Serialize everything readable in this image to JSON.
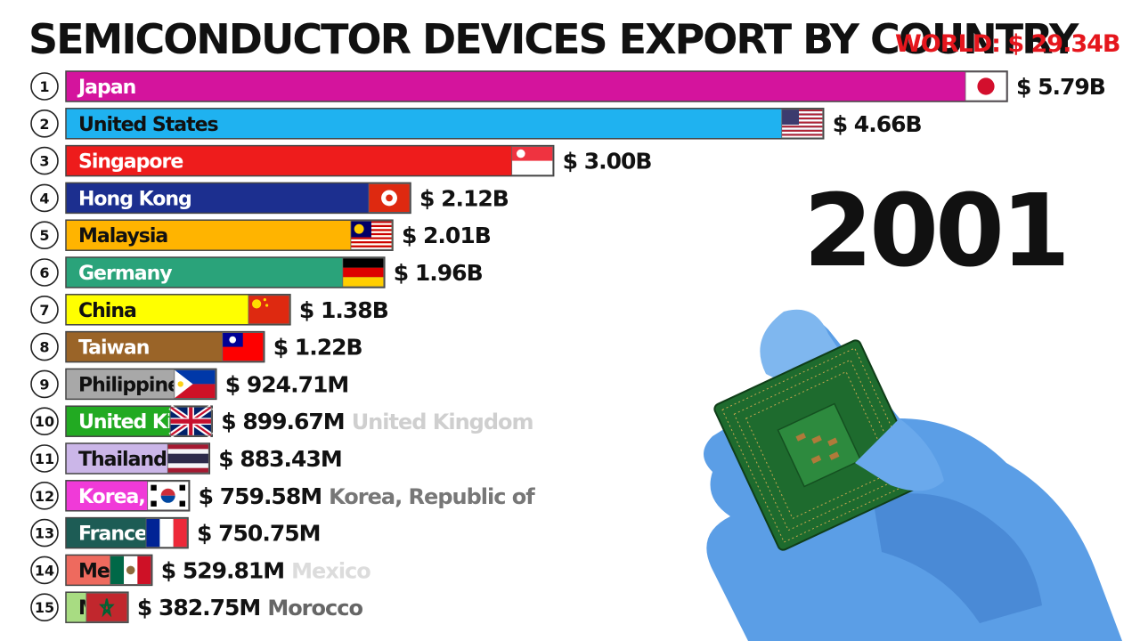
{
  "title": "SEMICONDUCTOR DEVICES EXPORT BY COUNTRY",
  "world_total": "WORLD: $ 29.34B",
  "year": "2001",
  "chart_data": {
    "type": "bar",
    "orientation": "horizontal",
    "title": "SEMICONDUCTOR DEVICES EXPORT BY COUNTRY",
    "unit": "USD",
    "categories": [
      "Japan",
      "United States",
      "Singapore",
      "Hong Kong",
      "Malaysia",
      "Germany",
      "China",
      "Taiwan",
      "Philippines",
      "United Kingdom",
      "Thailand",
      "Korea, Republic of",
      "France",
      "Mexico",
      "Morocco"
    ],
    "values": [
      5790000000.0,
      4660000000.0,
      3000000000.0,
      2120000000.0,
      2010000000.0,
      1960000000.0,
      1380000000.0,
      1220000000.0,
      924710000.0,
      899670000.0,
      883430000.0,
      759580000.0,
      750750000.0,
      529810000.0,
      382750000.0
    ],
    "bars": [
      {
        "rank": "1",
        "label": "Japan",
        "side_label": "",
        "value_text": "$ 5.79B",
        "value": 5790000000.0,
        "color": "#d4149d",
        "text_color": "#ffffff",
        "flag": "jp"
      },
      {
        "rank": "2",
        "label": "United States",
        "side_label": "",
        "value_text": "$ 4.66B",
        "value": 4660000000.0,
        "color": "#1fb2f0",
        "text_color": "#111111",
        "flag": "us"
      },
      {
        "rank": "3",
        "label": "Singapore",
        "side_label": "",
        "value_text": "$ 3.00B",
        "value": 3000000000.0,
        "color": "#ee1c1c",
        "text_color": "#ffffff",
        "flag": "sg"
      },
      {
        "rank": "4",
        "label": "Hong Kong",
        "side_label": "",
        "value_text": "$ 2.12B",
        "value": 2120000000.0,
        "color": "#1c2f8f",
        "text_color": "#ffffff",
        "flag": "hk"
      },
      {
        "rank": "5",
        "label": "Malaysia",
        "side_label": "",
        "value_text": "$ 2.01B",
        "value": 2010000000.0,
        "color": "#ffb400",
        "text_color": "#111111",
        "flag": "my"
      },
      {
        "rank": "6",
        "label": "Germany",
        "side_label": "",
        "value_text": "$ 1.96B",
        "value": 1960000000.0,
        "color": "#2aa37a",
        "text_color": "#ffffff",
        "flag": "de"
      },
      {
        "rank": "7",
        "label": "China",
        "side_label": "",
        "value_text": "$ 1.38B",
        "value": 1380000000.0,
        "color": "#ffff00",
        "text_color": "#111111",
        "flag": "cn"
      },
      {
        "rank": "8",
        "label": "Taiwan",
        "side_label": "",
        "value_text": "$ 1.22B",
        "value": 1220000000.0,
        "color": "#9a6428",
        "text_color": "#ffffff",
        "flag": "tw"
      },
      {
        "rank": "9",
        "label": "Philippines",
        "side_label": "",
        "value_text": "$ 924.71M",
        "value": 924710000.0,
        "color": "#a8a8a8",
        "text_color": "#111111",
        "flag": "ph"
      },
      {
        "rank": "10",
        "label": "United Kingdom",
        "side_label": "United Kingdom",
        "value_text": "$ 899.67M",
        "value": 899670000.0,
        "color": "#22aa22",
        "text_color": "#ffffff",
        "flag": "gb",
        "side_color": "#cfcfcf"
      },
      {
        "rank": "11",
        "label": "Thailand",
        "side_label": "",
        "value_text": "$ 883.43M",
        "value": 883430000.0,
        "color": "#cbb6e8",
        "text_color": "#111111",
        "flag": "th"
      },
      {
        "rank": "12",
        "label": "Korea, Republic of",
        "side_label": "Korea, Republic of",
        "value_text": "$ 759.58M",
        "value": 759580000.0,
        "color": "#f03ad8",
        "text_color": "#ffffff",
        "flag": "kr",
        "side_color": "#777777"
      },
      {
        "rank": "13",
        "label": "France",
        "side_label": "",
        "value_text": "$ 750.75M",
        "value": 750750000.0,
        "color": "#1d5c55",
        "text_color": "#ffffff",
        "flag": "fr"
      },
      {
        "rank": "14",
        "label": "Mexico",
        "side_label": "Mexico",
        "value_text": "$ 529.81M",
        "value": 529810000.0,
        "color": "#ee6a5e",
        "text_color": "#111111",
        "flag": "mx",
        "side_color": "#dcdcdc"
      },
      {
        "rank": "15",
        "label": "Morocco",
        "side_label": "Morocco",
        "value_text": "$ 382.75M",
        "value": 382750000.0,
        "color": "#a8dc82",
        "text_color": "#111111",
        "flag": "ma",
        "side_color": "#666666"
      }
    ]
  }
}
